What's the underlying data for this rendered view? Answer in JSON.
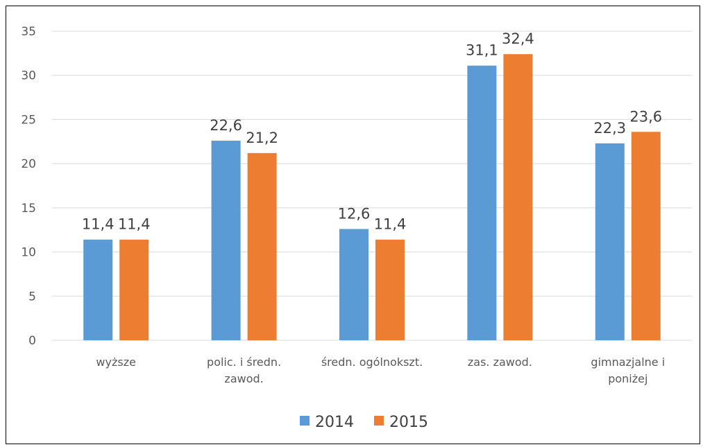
{
  "chart_data": {
    "type": "bar",
    "categories": [
      [
        "wyższe"
      ],
      [
        "polic. i średn.",
        "zawod."
      ],
      [
        "średn. ogólnokszt."
      ],
      [
        "zas. zawod."
      ],
      [
        "gimnazjalne i",
        "poniżej"
      ]
    ],
    "series": [
      {
        "name": "2014",
        "color": "#5B9BD5",
        "values": [
          11.4,
          22.6,
          12.6,
          31.1,
          22.3
        ]
      },
      {
        "name": "2015",
        "color": "#ED7D31",
        "values": [
          11.4,
          21.2,
          11.4,
          32.4,
          23.6
        ]
      }
    ],
    "value_labels": [
      [
        "11,4",
        "22,6",
        "12,6",
        "31,1",
        "22,3"
      ],
      [
        "11,4",
        "21,2",
        "11,4",
        "32,4",
        "23,6"
      ]
    ],
    "ylim": [
      0,
      35
    ],
    "yticks": [
      0,
      5,
      10,
      15,
      20,
      25,
      30,
      35
    ],
    "ytick_labels": [
      "0",
      "5",
      "10",
      "15",
      "20",
      "25",
      "30",
      "35"
    ],
    "grid": true,
    "legend": "bottom",
    "title": "",
    "xlabel": "",
    "ylabel": ""
  }
}
